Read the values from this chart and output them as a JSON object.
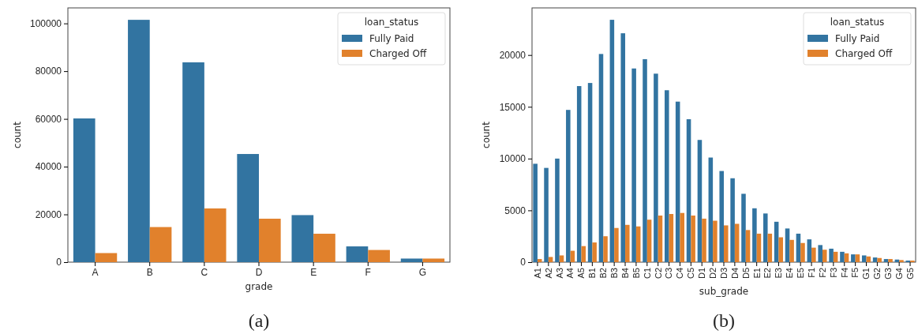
{
  "chart_data": [
    {
      "type": "bar",
      "categories": [
        "A",
        "B",
        "C",
        "D",
        "E",
        "F",
        "G"
      ],
      "xlabel": "grade",
      "ylabel": "count",
      "legend_title": "loan_status",
      "legend": "top right",
      "ylim": [
        0,
        106500
      ],
      "yticks": [
        0,
        20000,
        40000,
        60000,
        80000,
        100000
      ],
      "annotations": [
        "(a)"
      ],
      "series": [
        {
          "name": "Fully Paid",
          "color": "#3274a1",
          "values": [
            60200,
            101500,
            83700,
            45300,
            19700,
            6600,
            1500
          ]
        },
        {
          "name": "Charged Off",
          "color": "#e1812c",
          "values": [
            3800,
            14700,
            22500,
            18200,
            11900,
            5100,
            1500
          ]
        }
      ]
    },
    {
      "type": "bar",
      "categories": [
        "A1",
        "A2",
        "A3",
        "A4",
        "A5",
        "B1",
        "B2",
        "B3",
        "B4",
        "B5",
        "C1",
        "C2",
        "C3",
        "C4",
        "C5",
        "D1",
        "D2",
        "D3",
        "D4",
        "D5",
        "E1",
        "E2",
        "E3",
        "E4",
        "E5",
        "F1",
        "F2",
        "F3",
        "F4",
        "F5",
        "G1",
        "G2",
        "G3",
        "G4",
        "G5"
      ],
      "xlabel": "sub_grade",
      "ylabel": "count",
      "legend_title": "loan_status",
      "legend": "top right",
      "ylim": [
        0,
        24550
      ],
      "yticks": [
        0,
        5000,
        10000,
        15000,
        20000
      ],
      "annotations": [
        "(b)"
      ],
      "series": [
        {
          "name": "Fully Paid",
          "color": "#3274a1",
          "values": [
            9500,
            9100,
            10000,
            14700,
            17000,
            17300,
            20100,
            23400,
            22100,
            18700,
            19600,
            18200,
            16600,
            15500,
            13800,
            11800,
            10100,
            8800,
            8100,
            6600,
            5200,
            4700,
            3900,
            3250,
            2750,
            2200,
            1650,
            1300,
            1000,
            750,
            650,
            450,
            300,
            250,
            150
          ]
        },
        {
          "name": "Charged Off",
          "color": "#e1812c",
          "values": [
            300,
            500,
            650,
            1100,
            1550,
            1900,
            2500,
            3300,
            3600,
            3450,
            4100,
            4500,
            4650,
            4750,
            4500,
            4200,
            4000,
            3550,
            3700,
            3100,
            2750,
            2750,
            2400,
            2150,
            1850,
            1400,
            1200,
            1000,
            850,
            750,
            550,
            400,
            300,
            200,
            150
          ]
        }
      ]
    }
  ]
}
